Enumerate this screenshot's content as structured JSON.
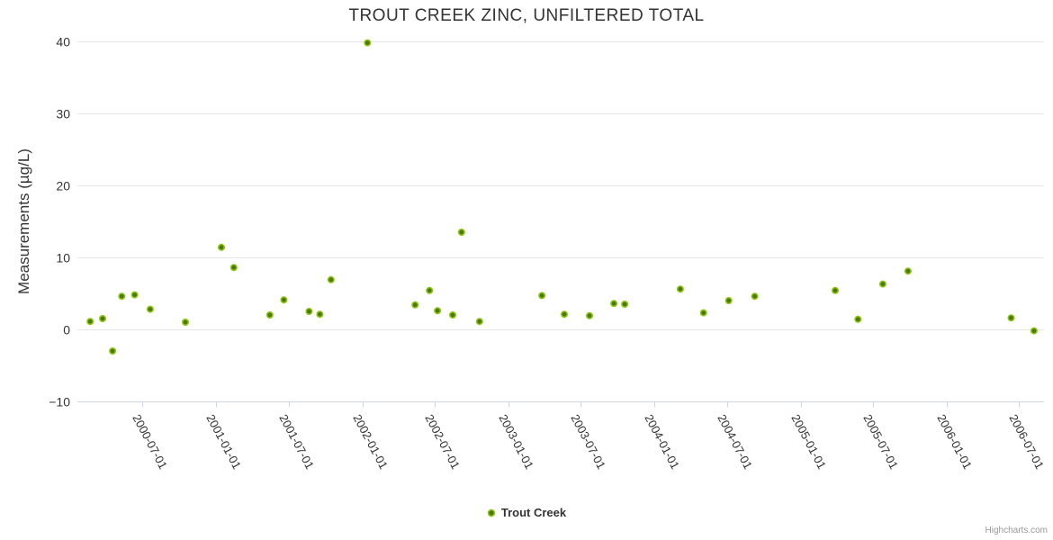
{
  "credits_label": "Highcharts.com",
  "colors": {
    "background": "#ffffff",
    "point_fill": "#4a7a04",
    "point_ring": "#8cc412",
    "grid": "#e6e6e6",
    "axis_line": "#ccd6eb",
    "tick": "#ccd6eb",
    "title_text": "#333333",
    "axis_label_text": "#333333",
    "credits_text": "#999999"
  },
  "chart_data": {
    "type": "scatter",
    "title": "TROUT CREEK ZINC, UNFILTERED TOTAL",
    "xlabel": "",
    "ylabel": "Measurements (µg/L)",
    "grid": true,
    "legend_position": "bottom-center",
    "x_axis": {
      "type": "datetime",
      "min": "2000-01-20",
      "max": "2006-09-01",
      "tick_dates": [
        "2000-07-01",
        "2001-01-01",
        "2001-07-01",
        "2002-01-01",
        "2002-07-01",
        "2003-01-01",
        "2003-07-01",
        "2004-01-01",
        "2004-07-01",
        "2005-01-01",
        "2005-07-01",
        "2006-01-01",
        "2006-07-01"
      ]
    },
    "y_axis": {
      "min": -10,
      "max": 40,
      "ticks": [
        40,
        30,
        20,
        10,
        0,
        -10
      ]
    },
    "series": [
      {
        "name": "Trout Creek",
        "points": [
          {
            "date": "2000-02-21",
            "value": 1.1
          },
          {
            "date": "2000-03-23",
            "value": 1.5
          },
          {
            "date": "2000-04-17",
            "value": -3.0
          },
          {
            "date": "2000-05-10",
            "value": 4.6
          },
          {
            "date": "2000-06-11",
            "value": 4.8
          },
          {
            "date": "2000-07-20",
            "value": 2.8
          },
          {
            "date": "2000-10-16",
            "value": 1.0
          },
          {
            "date": "2001-01-14",
            "value": 11.4
          },
          {
            "date": "2001-02-14",
            "value": 8.6
          },
          {
            "date": "2001-05-15",
            "value": 2.0
          },
          {
            "date": "2001-06-19",
            "value": 4.1
          },
          {
            "date": "2001-08-21",
            "value": 2.5
          },
          {
            "date": "2001-09-17",
            "value": 2.1
          },
          {
            "date": "2001-10-15",
            "value": 6.9
          },
          {
            "date": "2002-01-14",
            "value": 39.8
          },
          {
            "date": "2002-05-13",
            "value": 3.4
          },
          {
            "date": "2002-06-18",
            "value": 5.4
          },
          {
            "date": "2002-07-08",
            "value": 2.6
          },
          {
            "date": "2002-08-15",
            "value": 2.0
          },
          {
            "date": "2002-09-06",
            "value": 13.5
          },
          {
            "date": "2002-10-21",
            "value": 1.1
          },
          {
            "date": "2003-03-26",
            "value": 4.7
          },
          {
            "date": "2003-05-21",
            "value": 2.1
          },
          {
            "date": "2003-07-23",
            "value": 1.9
          },
          {
            "date": "2003-09-22",
            "value": 3.6
          },
          {
            "date": "2003-10-19",
            "value": 3.5
          },
          {
            "date": "2004-03-06",
            "value": 5.6
          },
          {
            "date": "2004-05-03",
            "value": 2.3
          },
          {
            "date": "2004-07-05",
            "value": 4.0
          },
          {
            "date": "2004-09-08",
            "value": 4.6
          },
          {
            "date": "2005-03-28",
            "value": 5.4
          },
          {
            "date": "2005-05-24",
            "value": 1.4
          },
          {
            "date": "2005-07-25",
            "value": 6.3
          },
          {
            "date": "2005-09-26",
            "value": 8.1
          },
          {
            "date": "2006-06-11",
            "value": 1.6
          },
          {
            "date": "2006-08-07",
            "value": -0.2
          }
        ]
      }
    ]
  }
}
